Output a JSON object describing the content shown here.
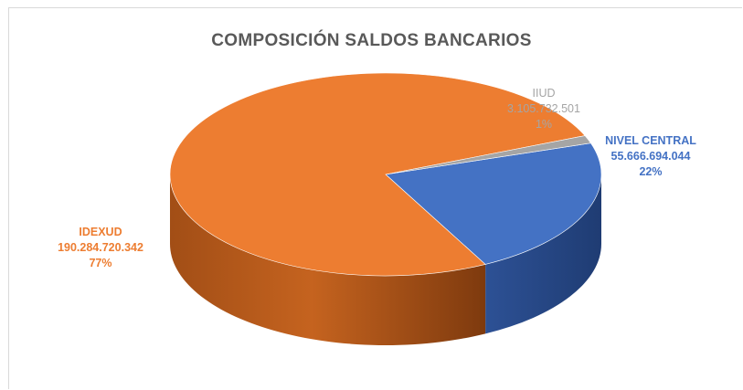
{
  "chart_data": {
    "type": "pie",
    "style": "3d",
    "title": "COMPOSICIÓN SALDOS BANCARIOS",
    "slices": [
      {
        "name": "NIVEL CENTRAL",
        "value": 55666694044,
        "value_label": "55.666.694.044",
        "percent_label": "22%",
        "color": "#4472c4"
      },
      {
        "name": "IDEXUD",
        "value": 190284720342,
        "value_label": "190.284.720.342",
        "percent_label": "77%",
        "color": "#ed7d31"
      },
      {
        "name": "IIUD",
        "value": 3105732501,
        "value_label": "3.105.732.501",
        "percent_label": "1%",
        "color": "#a5a5a5"
      }
    ]
  }
}
